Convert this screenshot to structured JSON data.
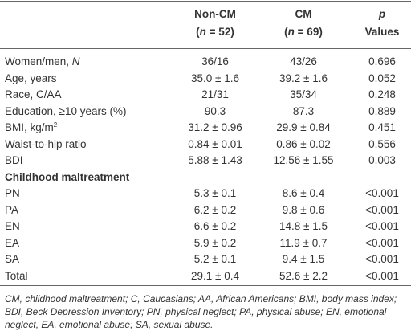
{
  "table": {
    "header": [
      [
        [
          {
            "text": "Non-CM"
          }
        ],
        [
          {
            "text": "("
          },
          {
            "text": "n",
            "italic": true
          },
          {
            "text": " = 52)"
          }
        ]
      ],
      [
        [
          {
            "text": "CM"
          }
        ],
        [
          {
            "text": "("
          },
          {
            "text": "n",
            "italic": true
          },
          {
            "text": " = 69)"
          }
        ]
      ],
      [
        [
          {
            "text": "p",
            "italic": true
          }
        ],
        [
          {
            "text": "Values"
          }
        ]
      ]
    ],
    "rows": [
      {
        "label": [
          {
            "text": "Women/men, "
          },
          {
            "text": "N",
            "italic": true
          }
        ],
        "cells": [
          "36/16",
          "43/26",
          "0.696"
        ]
      },
      {
        "label": [
          {
            "text": "Age, years"
          }
        ],
        "cells": [
          "35.0 ± 1.6",
          "39.2 ± 1.6",
          "0.052"
        ]
      },
      {
        "label": [
          {
            "text": "Race, C/AA"
          }
        ],
        "cells": [
          "21/31",
          "35/34",
          "0.248"
        ]
      },
      {
        "label": [
          {
            "text": "Education, ≥10 years (%)"
          }
        ],
        "cells": [
          "90.3",
          "87.3",
          "0.889"
        ]
      },
      {
        "label": [
          {
            "text": "BMI, kg/m"
          },
          {
            "text": "2",
            "sup": true
          }
        ],
        "cells": [
          "31.2 ± 0.96",
          "29.9 ± 0.84",
          "0.451"
        ]
      },
      {
        "label": [
          {
            "text": "Waist-to-hip ratio"
          }
        ],
        "cells": [
          "0.84 ± 0.01",
          "0.86 ± 0.02",
          "0.556"
        ]
      },
      {
        "label": [
          {
            "text": "BDI"
          }
        ],
        "cells": [
          "5.88 ± 1.43",
          "12.56 ± 1.55",
          "0.003"
        ]
      },
      {
        "label": [
          {
            "text": "Childhood maltreatment"
          }
        ],
        "bold": true
      },
      {
        "label": [
          {
            "text": "PN"
          }
        ],
        "cells": [
          "5.3 ± 0.1",
          "8.6 ± 0.4",
          "<0.001"
        ]
      },
      {
        "label": [
          {
            "text": "PA"
          }
        ],
        "cells": [
          "6.2 ± 0.2",
          "9.8 ± 0.6",
          "<0.001"
        ]
      },
      {
        "label": [
          {
            "text": "EN"
          }
        ],
        "cells": [
          "6.6 ± 0.2",
          "14.8 ± 1.5",
          "<0.001"
        ]
      },
      {
        "label": [
          {
            "text": "EA"
          }
        ],
        "cells": [
          "5.9 ± 0.2",
          "11.9 ± 0.7",
          "<0.001"
        ]
      },
      {
        "label": [
          {
            "text": "SA"
          }
        ],
        "cells": [
          "5.2 ± 0.1",
          "9.4 ± 1.5",
          "<0.001"
        ]
      },
      {
        "label": [
          {
            "text": "Total"
          }
        ],
        "cells": [
          "29.1 ± 0.4",
          "52.6 ± 2.2",
          "<0.001"
        ]
      }
    ],
    "footnote": "CM, childhood maltreatment; C, Caucasians; AA, African Americans; BMI, body mass index; BDI, Beck Depression Inventory; PN, physical neglect; PA, physical abuse; EN, emotional neglect, EA, emotional abuse; SA, sexual abuse."
  }
}
